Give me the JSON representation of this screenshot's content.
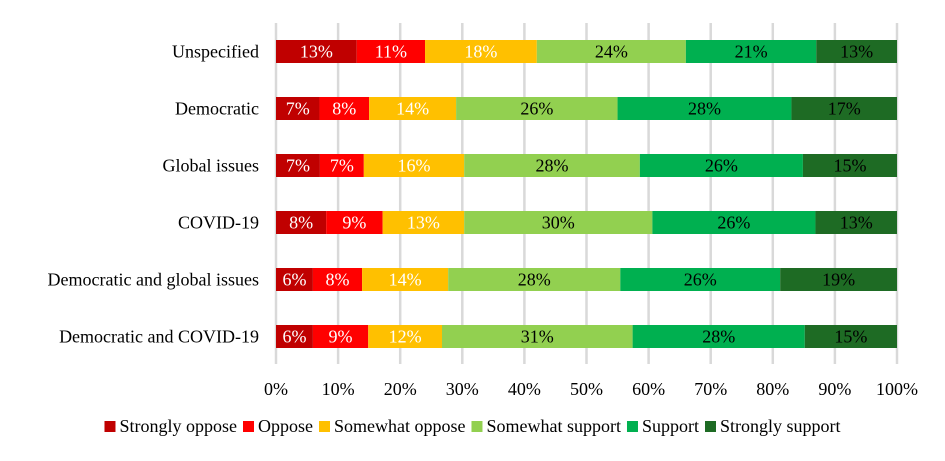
{
  "chart_data": {
    "type": "bar",
    "orientation": "horizontal",
    "stacked": "percent",
    "title": "",
    "xlabel": "",
    "ylabel": "",
    "xlim": [
      0,
      100
    ],
    "x_ticks": [
      "0%",
      "10%",
      "20%",
      "30%",
      "40%",
      "50%",
      "60%",
      "70%",
      "80%",
      "90%",
      "100%"
    ],
    "grid": true,
    "legend_position": "bottom",
    "categories": [
      "Unspecified",
      "Democratic",
      "Global issues",
      "COVID-19",
      "Democratic and global issues",
      "Democratic and COVID-19"
    ],
    "series": [
      {
        "name": "Strongly oppose",
        "color": "#C00000",
        "label_color": "#FFFFFF",
        "values": [
          13,
          7,
          7,
          8,
          6,
          6
        ]
      },
      {
        "name": "Oppose",
        "color": "#FF0000",
        "label_color": "#FFFFFF",
        "values": [
          11,
          8,
          7,
          9,
          8,
          9
        ]
      },
      {
        "name": "Somewhat oppose",
        "color": "#FFC000",
        "label_color": "#FFFFFF",
        "values": [
          18,
          14,
          16,
          13,
          14,
          12
        ]
      },
      {
        "name": "Somewhat support",
        "color": "#92D050",
        "label_color": "#000000",
        "values": [
          24,
          26,
          28,
          30,
          28,
          31
        ]
      },
      {
        "name": "Support",
        "color": "#00B050",
        "label_color": "#000000",
        "values": [
          21,
          28,
          26,
          26,
          26,
          28
        ]
      },
      {
        "name": "Strongly support",
        "color": "#1E6B24",
        "label_color": "#000000",
        "values": [
          13,
          17,
          15,
          13,
          19,
          15
        ]
      }
    ],
    "value_suffix": "%"
  }
}
